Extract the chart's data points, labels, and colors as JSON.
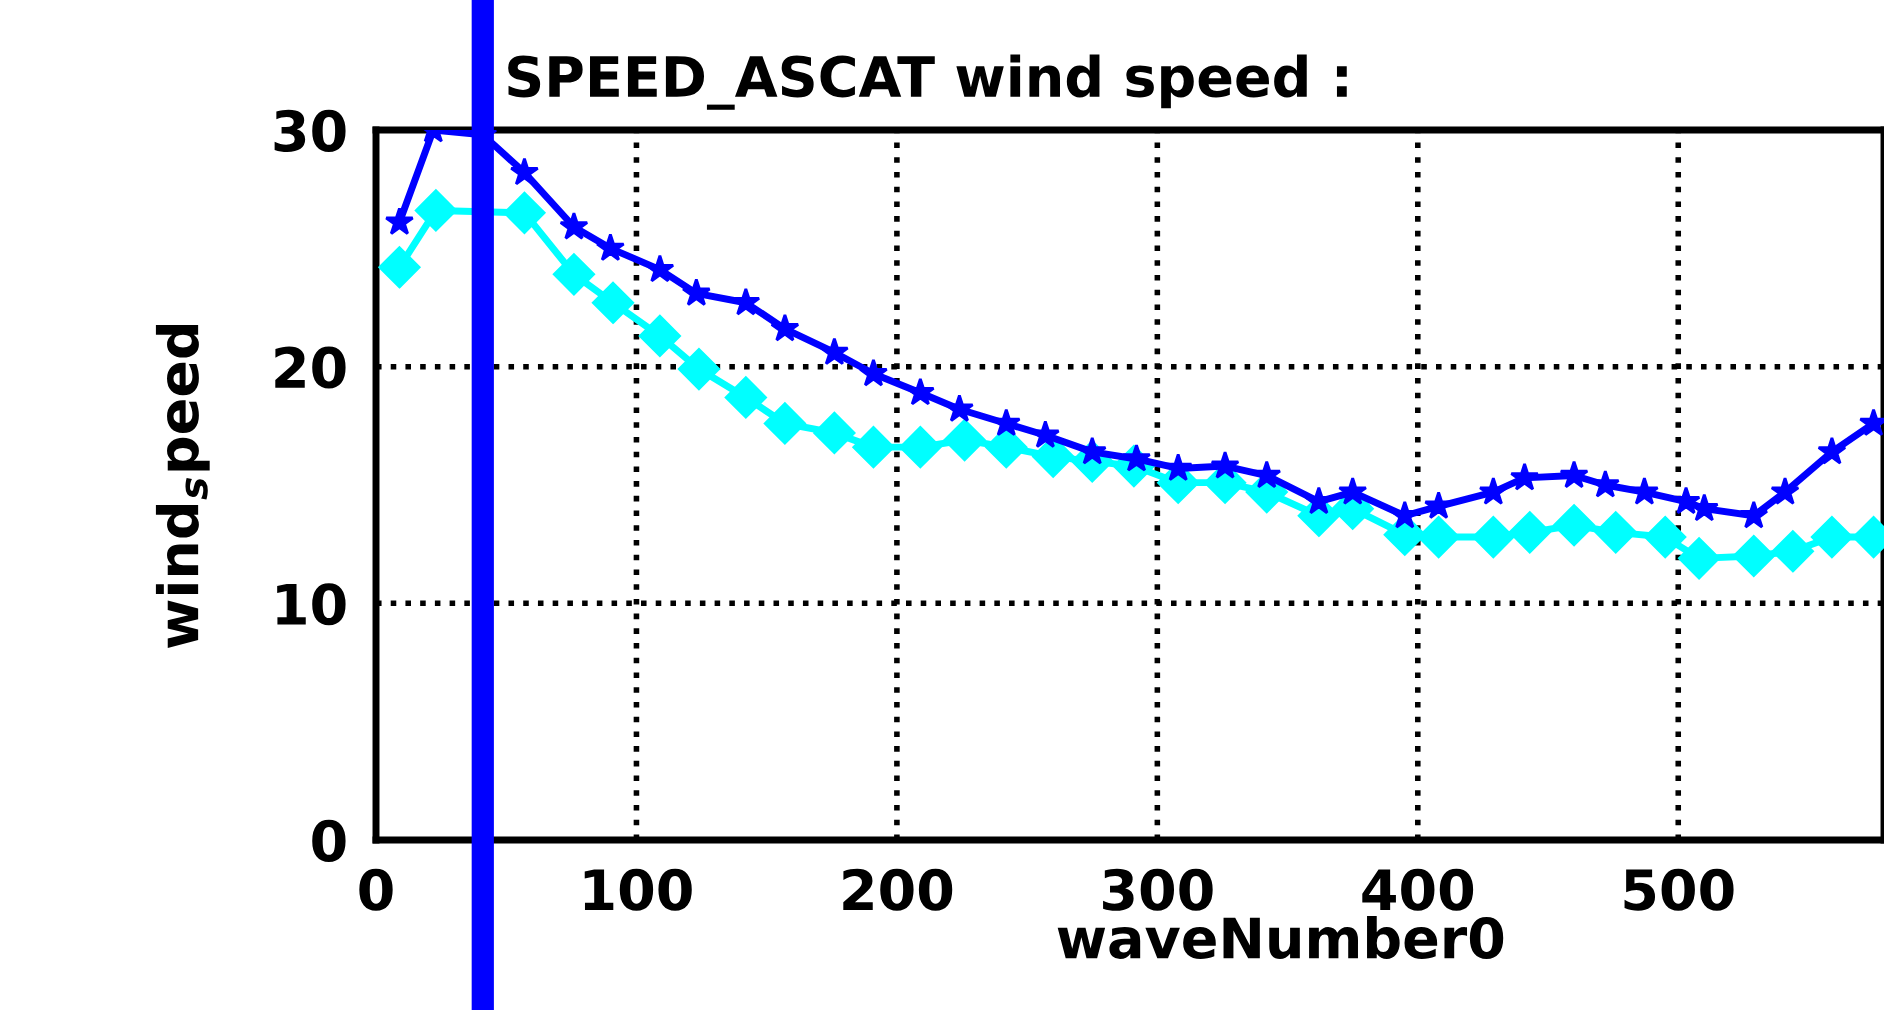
{
  "chart_data": {
    "type": "line",
    "title": "SPEED_ASCAT wind speed :",
    "xlabel": "waveNumber0",
    "ylabel": "wind$_{s}$peed",
    "xlim": [
      0,
      579
    ],
    "ylim": [
      0,
      30
    ],
    "xticks": [
      0,
      100,
      200,
      300,
      400,
      500
    ],
    "yticks": [
      0,
      10,
      20,
      30
    ],
    "grid": true,
    "series": [
      {
        "color": "#0000ff",
        "marker": "star",
        "x": [
          9,
          22,
          41,
          57,
          76,
          90,
          109,
          123,
          142,
          157,
          176,
          191,
          209,
          224,
          242,
          257,
          275,
          292,
          308,
          326,
          342,
          362,
          375,
          395,
          408,
          429,
          441,
          460,
          472,
          487,
          503,
          510,
          529,
          541,
          559,
          575
        ],
        "values": [
          26.1,
          30.0,
          29.8,
          28.2,
          25.9,
          25.0,
          24.1,
          23.1,
          22.7,
          21.6,
          20.6,
          19.7,
          18.9,
          18.2,
          17.6,
          17.1,
          16.4,
          16.1,
          15.7,
          15.8,
          15.4,
          14.3,
          14.7,
          13.7,
          14.1,
          14.7,
          15.3,
          15.4,
          15.0,
          14.7,
          14.3,
          14.0,
          13.7,
          14.7,
          16.4,
          17.6
        ]
      },
      {
        "color": "#00ffff",
        "marker": "diamond",
        "x": [
          9,
          23,
          41,
          57,
          76,
          91,
          109,
          124,
          142,
          157,
          176,
          191,
          209,
          226,
          242,
          260,
          275,
          291,
          308,
          326,
          342,
          362,
          375,
          395,
          408,
          429,
          443,
          460,
          476,
          495,
          508,
          529,
          544,
          559,
          575
        ],
        "values": [
          24.2,
          26.6,
          null,
          26.5,
          23.9,
          22.7,
          21.3,
          19.9,
          18.7,
          17.6,
          17.2,
          16.6,
          16.6,
          16.9,
          16.6,
          16.2,
          16.0,
          15.8,
          15.1,
          15.1,
          14.7,
          13.7,
          14.0,
          12.9,
          12.8,
          12.8,
          13.0,
          13.3,
          13.0,
          12.8,
          11.9,
          12.0,
          12.2,
          12.8,
          12.8
        ]
      }
    ],
    "ref_lines": [
      {
        "axis": "x",
        "value": 41,
        "color": "#0000ff",
        "line_style": "solid"
      }
    ]
  }
}
